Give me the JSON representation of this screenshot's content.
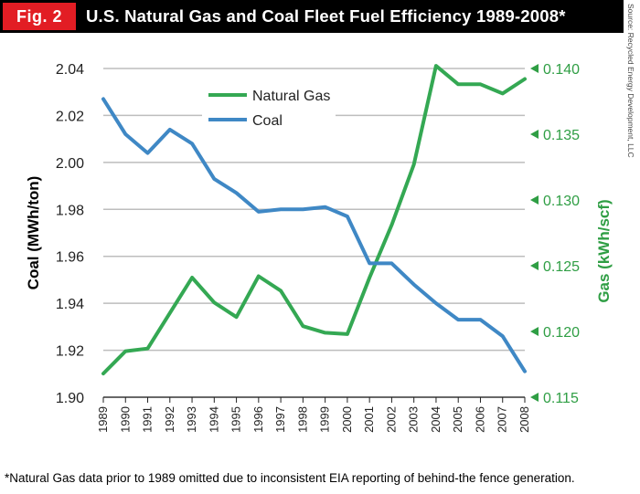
{
  "header": {
    "fig_label": "Fig. 2",
    "title": "U.S. Natural Gas and Coal Fleet Fuel Efficiency 1989-2008*"
  },
  "source": "Source: Recycled Energy Development, LLC",
  "footnote": "*Natural Gas data prior to 1989 omitted due to inconsistent EIA reporting of behind-the fence generation.",
  "colors": {
    "gas": "#34a853",
    "coal": "#3f88c5",
    "header_bg": "#000000",
    "fig_label_bg": "#e21d24",
    "gas_axis": "#2f9e44"
  },
  "chart_data": {
    "type": "line",
    "title": "U.S. Natural Gas and Coal Fleet Fuel Efficiency 1989-2008*",
    "x": [
      "1989",
      "1990",
      "1991",
      "1992",
      "1993",
      "1994",
      "1995",
      "1996",
      "1997",
      "1998",
      "1999",
      "2000",
      "2001",
      "2002",
      "2003",
      "2004",
      "2005",
      "2006",
      "2007",
      "2008"
    ],
    "series": [
      {
        "name": "Natural Gas",
        "axis": "right",
        "values": [
          0.1168,
          0.1185,
          0.1187,
          0.1214,
          0.1241,
          0.1222,
          0.1211,
          0.1242,
          0.1231,
          0.1204,
          0.1199,
          0.1198,
          0.1241,
          0.1281,
          0.1327,
          0.1402,
          0.1388,
          0.1388,
          0.1381,
          0.1392
        ]
      },
      {
        "name": "Coal",
        "axis": "left",
        "values": [
          2.027,
          2.012,
          2.004,
          2.014,
          2.008,
          1.993,
          1.987,
          1.979,
          1.98,
          1.98,
          1.981,
          1.977,
          1.957,
          1.957,
          1.948,
          1.94,
          1.933,
          1.933,
          1.926,
          1.911
        ]
      }
    ],
    "ylabel": "Coal (MWh/ton)",
    "ylim": [
      1.9,
      2.04
    ],
    "yticks": [
      "1.90",
      "1.92",
      "1.94",
      "1.96",
      "1.98",
      "2.00",
      "2.02",
      "2.04"
    ],
    "y2label": "Gas (kWh/scf)",
    "y2lim": [
      0.115,
      0.14
    ],
    "y2ticks": [
      "0.115",
      "0.120",
      "0.125",
      "0.130",
      "0.135",
      "0.140"
    ],
    "grid": true,
    "legend": "top-center"
  }
}
